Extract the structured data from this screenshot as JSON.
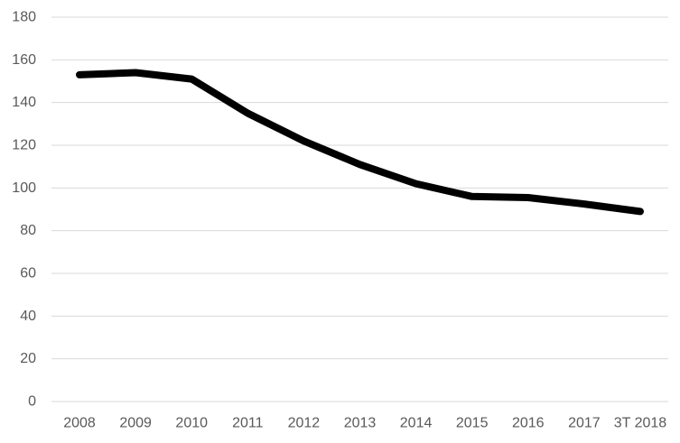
{
  "chart_data": {
    "type": "line",
    "title": "",
    "xlabel": "",
    "ylabel": "",
    "categories": [
      "2008",
      "2009",
      "2010",
      "2011",
      "2012",
      "2013",
      "2014",
      "2015",
      "2016",
      "2017",
      "3T 2018"
    ],
    "series": [
      {
        "values": [
          153,
          154,
          151,
          135,
          122,
          111,
          102,
          96,
          95.5,
          92.5,
          89
        ],
        "color": "#000000"
      }
    ],
    "ylim": [
      0,
      180
    ],
    "yticks": [
      0,
      20,
      40,
      60,
      80,
      100,
      120,
      140,
      160,
      180
    ],
    "grid": true,
    "legend": "none"
  }
}
